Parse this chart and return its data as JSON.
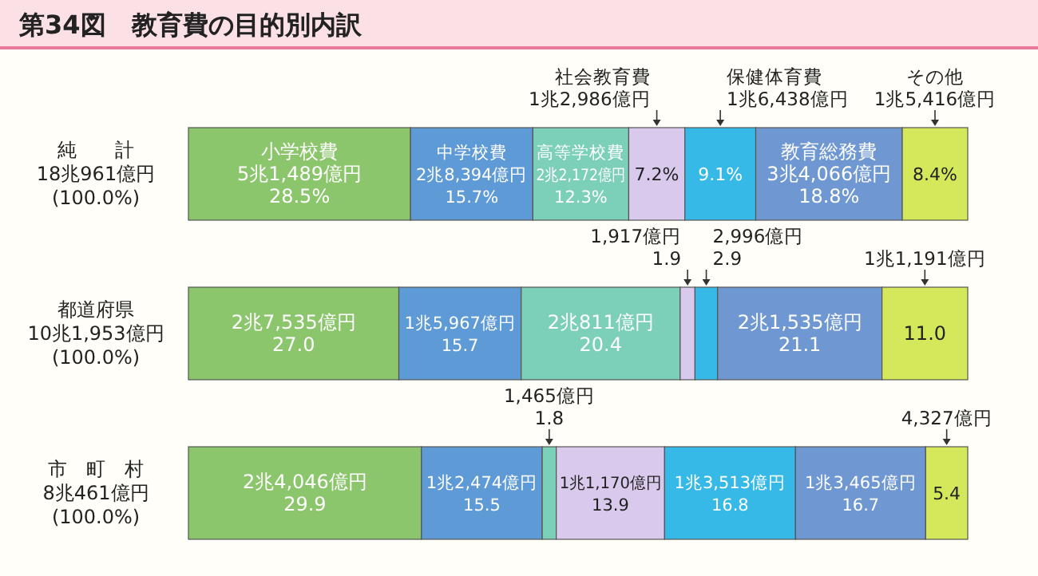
{
  "chart_data": {
    "type": "bar",
    "orientation": "horizontal",
    "stacked": true,
    "title": "第34図　教育費の目的別内訳",
    "categories": [
      "純　　計\n18兆961億円\n(100.0%)",
      "都道府県\n10兆1,953億円\n(100.0%)",
      "市　町　村\n8兆461億円\n(100.0%)"
    ],
    "series": [
      {
        "name": "小学校費",
        "color": "#8cc66c",
        "values": [
          28.5,
          27.0,
          29.9
        ],
        "value_labels": [
          "5兆1,489億円\n28.5%",
          "2兆7,535億円\n27.0",
          "2兆4,046億円\n29.9"
        ]
      },
      {
        "name": "中学校費",
        "color": "#5e9ad6",
        "values": [
          15.7,
          15.7,
          15.5
        ],
        "value_labels": [
          "2兆8,394億円\n15.7%",
          "1兆5,967億円\n15.7",
          "1兆2,474億円\n15.5"
        ]
      },
      {
        "name": "高等学校費",
        "color": "#7ccfb8",
        "values": [
          12.3,
          20.4,
          1.8
        ],
        "value_labels": [
          "2兆2,172億円\n12.3%",
          "2兆811億円\n20.4",
          "1,465億円\n1.8"
        ]
      },
      {
        "name": "社会教育費",
        "color": "#d9c9ec",
        "values": [
          7.2,
          1.9,
          13.9
        ],
        "value_labels": [
          "1兆2,986億円\n7.2%",
          "1,917億円\n1.9",
          "1兆1,170億円\n13.9"
        ]
      },
      {
        "name": "保健体育費",
        "color": "#36b9e6",
        "values": [
          9.1,
          2.9,
          16.8
        ],
        "value_labels": [
          "1兆6,438億円\n9.1%",
          "2,996億円\n2.9",
          "1兆3,513億円\n16.8"
        ]
      },
      {
        "name": "教育総務費",
        "color": "#6f97d2",
        "values": [
          18.8,
          21.1,
          16.7
        ],
        "value_labels": [
          "3兆4,066億円\n18.8%",
          "2兆1,535億円\n21.1",
          "1兆3,465億円\n16.7"
        ]
      },
      {
        "name": "その他",
        "color": "#d5e85c",
        "values": [
          8.4,
          11.0,
          5.4
        ],
        "value_labels": [
          "1兆5,416億円\n8.4%",
          "1兆1,191億円\n11.0",
          "4,327億円\n5.4"
        ]
      }
    ]
  }
}
